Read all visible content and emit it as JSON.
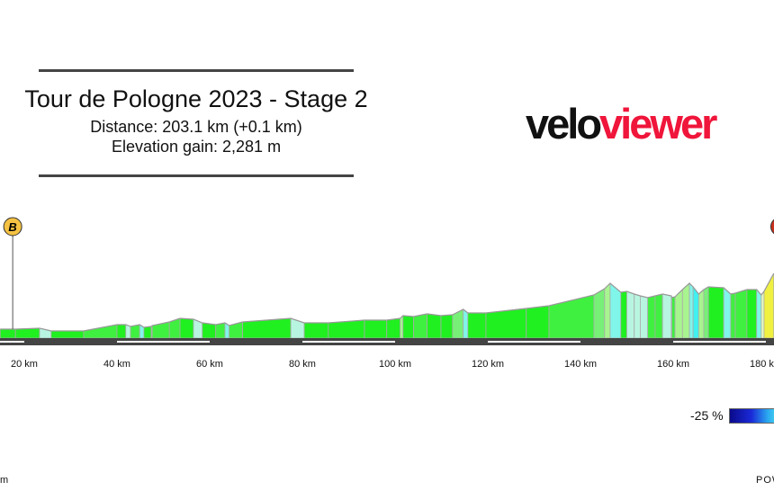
{
  "header": {
    "title": "Tour de Pologne 2023 - Stage 2",
    "distance": "Distance: 203.1 km (+0.1 km)",
    "elevation_gain": "Elevation gain: 2,281 m"
  },
  "logo": {
    "part1": "velo",
    "part2": "viewer",
    "colors": {
      "part1": "#111111",
      "part2": "#f0153a"
    }
  },
  "legend": {
    "min_label": "-25 %"
  },
  "footer": {
    "left": "m",
    "right": "POW"
  },
  "markers": [
    {
      "label": "B",
      "km": 17.5,
      "color": "#f5c242"
    },
    {
      "label": "",
      "km": 183,
      "color": "#c8321e"
    }
  ],
  "chart_data": {
    "type": "area",
    "title": "Tour de Pologne 2023 - Stage 2",
    "xlabel": "",
    "ylabel": "",
    "x_ticks": [
      "20 km",
      "40 km",
      "60 km",
      "80 km",
      "100 km",
      "120 km",
      "140 km",
      "160 km",
      "180 km"
    ],
    "x_tick_values": [
      20,
      40,
      60,
      80,
      100,
      120,
      140,
      160,
      180
    ],
    "xlim": [
      14.8,
      181.7
    ],
    "colored_by": "gradient",
    "km": [
      14.8,
      18.1,
      23.3,
      25.8,
      32.8,
      40,
      41.9,
      42.9,
      44.9,
      45.8,
      47.4,
      47.6,
      51.3,
      53.6,
      56.5,
      58.4,
      61.3,
      63.3,
      64.2,
      67.1,
      77.5,
      80.4,
      85.6,
      93.4,
      98.2,
      101.1,
      101.7,
      104,
      106.9,
      109.9,
      112.4,
      114.7,
      115.7,
      119.6,
      128.3,
      133.2,
      142.9,
      145.2,
      146.4,
      148.7,
      150,
      151.6,
      152.9,
      154.5,
      156.1,
      157.7,
      159.6,
      159.7,
      160.4,
      162,
      163.5,
      164.3,
      165.5,
      166.6,
      167.6,
      170.9,
      172.4,
      173.4,
      175.9,
      178,
      179,
      179.6,
      181.7
    ],
    "elevation": [
      150,
      150,
      156,
      138,
      138,
      180,
      180,
      168,
      180,
      162,
      168,
      174,
      198,
      222,
      216,
      192,
      180,
      192,
      174,
      198,
      222,
      192,
      192,
      210,
      210,
      222,
      240,
      234,
      252,
      240,
      246,
      282,
      258,
      258,
      288,
      306,
      378,
      420,
      456,
      396,
      402,
      384,
      372,
      360,
      372,
      384,
      372,
      360,
      366,
      414,
      456,
      432,
      384,
      414,
      432,
      426,
      384,
      390,
      414,
      414,
      378,
      402,
      522
    ]
  }
}
